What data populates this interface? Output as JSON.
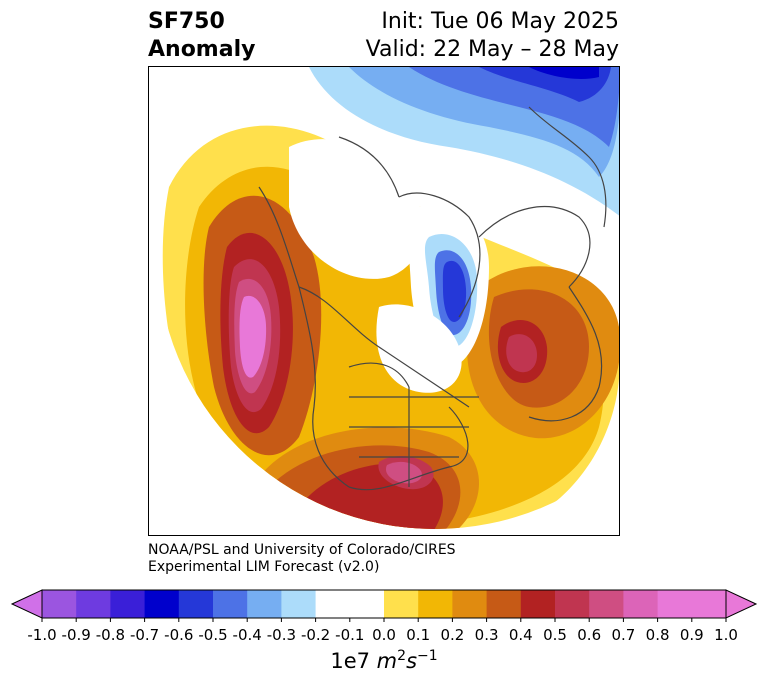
{
  "header": {
    "title_line1": "SF750",
    "title_line2": "Anomaly",
    "init": "Init: Tue 06 May 2025",
    "valid": "Valid: 22 May – 28 May"
  },
  "credit": {
    "line1": "NOAA/PSL and University of Colorado/CIRES",
    "line2": "Experimental LIM Forecast (v2.0)"
  },
  "colorbar": {
    "ticks": [
      "-1.0",
      "-0.9",
      "-0.8",
      "-0.7",
      "-0.6",
      "-0.5",
      "-0.4",
      "-0.3",
      "-0.2",
      "-0.1",
      "0.0",
      "0.1",
      "0.2",
      "0.3",
      "0.4",
      "0.5",
      "0.6",
      "0.7",
      "0.8",
      "0.9",
      "1.0"
    ],
    "colors": [
      "#9b55e0",
      "#6e3be0",
      "#3a1fd8",
      "#0000cc",
      "#2538d8",
      "#4d72e6",
      "#76aef2",
      "#acdcfa",
      "#ffffff",
      "#ffe04c",
      "#f2b705",
      "#e08b10",
      "#c65a16",
      "#b22222",
      "#c03550",
      "#cf4e82",
      "#dc64b8"
    ],
    "under_color": "#d070e8",
    "over_color": "#e878d8",
    "label_prefix": "1e7 ",
    "label_unit": "m",
    "label_unit_exp": "2",
    "label_unit2": "s",
    "label_unit2_exp": "−1"
  },
  "map": {
    "projection": "north-polar-stereographic",
    "field": "750 hPa streamfunction anomaly",
    "features": [
      "positive-anomaly-east-pacific",
      "positive-anomaly-southeast-us",
      "positive-anomaly-north-atlantic",
      "negative-anomaly-greenland",
      "negative-anomaly-arctic-siberia"
    ]
  }
}
